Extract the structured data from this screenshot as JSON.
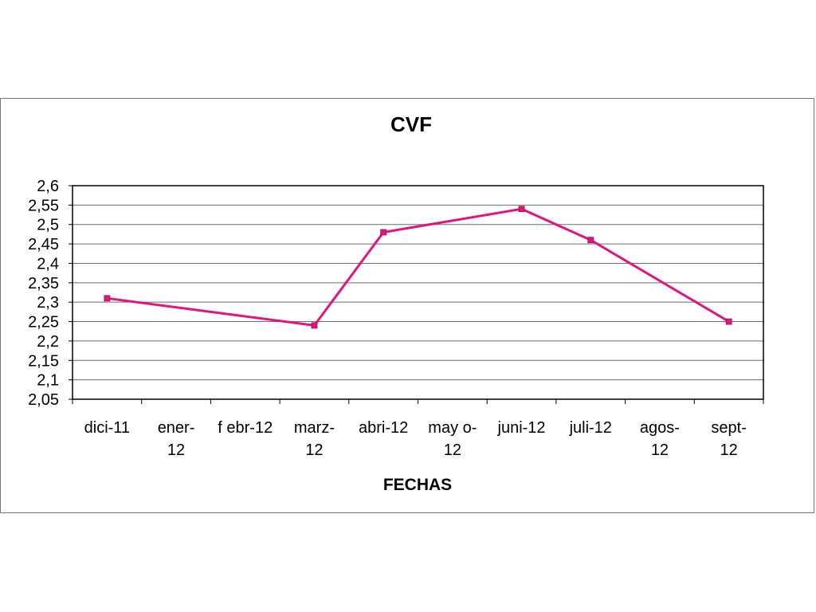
{
  "chart_data": {
    "type": "line",
    "title": "CVF",
    "xlabel": "FECHAS",
    "ylabel": "",
    "categories": [
      [
        "dici-11"
      ],
      [
        "ener-",
        "12"
      ],
      [
        "f ebr-12"
      ],
      [
        "marz-",
        "12"
      ],
      [
        "abri-12"
      ],
      [
        "may o-",
        "12"
      ],
      [
        "juni-12"
      ],
      [
        "juli-12"
      ],
      [
        "agos-",
        "12"
      ],
      [
        "sept-",
        "12"
      ]
    ],
    "series": [
      {
        "color": "#e0157f",
        "values": [
          2.31,
          null,
          null,
          2.24,
          2.48,
          null,
          2.54,
          2.46,
          null,
          2.25
        ]
      }
    ],
    "ylim": [
      2.05,
      2.6
    ],
    "yticks": [
      2.05,
      2.1,
      2.15,
      2.2,
      2.25,
      2.3,
      2.35,
      2.4,
      2.45,
      2.5,
      2.55,
      2.6
    ],
    "ytick_labels": [
      "2,05",
      "2,1",
      "2,15",
      "2,2",
      "2,25",
      "2,3",
      "2,35",
      "2,4",
      "2,45",
      "2,5",
      "2,55",
      "2,6"
    ],
    "grid": true,
    "legend": "none"
  }
}
